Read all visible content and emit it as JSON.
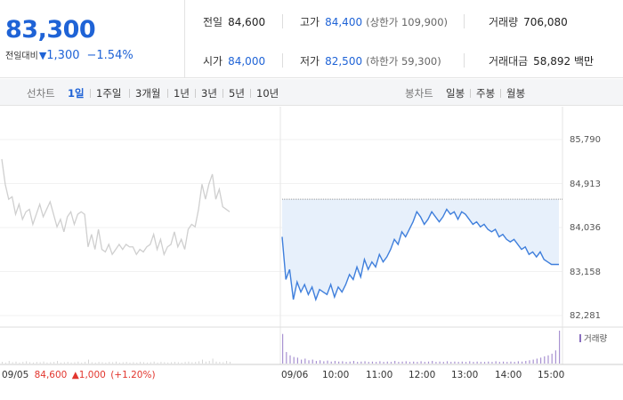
{
  "quote": {
    "current_price": "83,300",
    "change_label": "전일대비",
    "change_dir_icon": "down-triangle-icon",
    "change_amount": "1,300",
    "change_pct": "−1.54%",
    "down_color": "#1f63d6",
    "up_color": "#e2362e"
  },
  "info": {
    "prev_close": {
      "label": "전일",
      "value": "84,600"
    },
    "high": {
      "label": "고가",
      "value": "84,400",
      "limit_label": "(상한가 109,900)"
    },
    "volume": {
      "label": "거래량",
      "value": "706,080"
    },
    "open": {
      "label": "시가",
      "value": "84,000"
    },
    "low": {
      "label": "저가",
      "value": "82,500",
      "limit_label": "(하한가 59,300)"
    },
    "trade_value": {
      "label": "거래대금",
      "value": "58,892",
      "unit": "백만"
    }
  },
  "periods": {
    "line_label": "선차트",
    "line_items": [
      "1일",
      "1주일",
      "3개월",
      "1년",
      "3년",
      "5년",
      "10년"
    ],
    "active_index": 0,
    "candle_label": "봉차트",
    "candle_items": [
      "일봉",
      "주봉",
      "월봉"
    ]
  },
  "chart": {
    "y_ticks": [
      "85,790",
      "84,913",
      "84,036",
      "83,158",
      "82,281"
    ],
    "x_ticks": [
      "09/06",
      "10:00",
      "11:00",
      "12:00",
      "13:00",
      "14:00",
      "15:00"
    ],
    "prev_day": {
      "date": "09/05",
      "close": "84,600",
      "change": "▲1,000",
      "pct": "(+1.20%)"
    },
    "volume_legend": "거래량"
  },
  "chart_data": {
    "type": "line",
    "title": "",
    "xlabel": "",
    "ylabel": "",
    "ylim": [
      82281,
      85790
    ],
    "series": [
      {
        "values": [
          85400,
          84900,
          84600,
          84650,
          84300,
          84500,
          84200,
          84350,
          84400,
          84100,
          84300,
          84500,
          84250,
          84400,
          84550,
          84300,
          84050,
          84200,
          83950,
          84250,
          84350,
          84100,
          84300,
          84350,
          84300,
          83650,
          83900,
          83600,
          84000,
          83600,
          83550,
          83700,
          83500,
          83600,
          83700,
          83600,
          83700,
          83650,
          83650,
          83500,
          83600,
          83550,
          83650,
          83700,
          83900,
          83600,
          83800,
          83500,
          83650,
          83700,
          83950,
          83650,
          83800,
          83600,
          84000,
          84100,
          84050,
          84400,
          84900,
          84600,
          84900,
          85100,
          84600,
          84800,
          84450,
          84400,
          84350
        ]
      },
      {
        "values": [
          83850,
          83000,
          83200,
          82600,
          82950,
          82750,
          82900,
          82700,
          82850,
          82600,
          82800,
          82750,
          82700,
          82900,
          82650,
          82850,
          82750,
          82900,
          83100,
          83000,
          83250,
          83050,
          83400,
          83200,
          83350,
          83250,
          83500,
          83350,
          83450,
          83600,
          83800,
          83700,
          83950,
          83850,
          84000,
          84150,
          84350,
          84250,
          84100,
          84200,
          84350,
          84250,
          84150,
          84250,
          84400,
          84300,
          84350,
          84200,
          84350,
          84300,
          84200,
          84100,
          84150,
          84050,
          84100,
          84000,
          83950,
          84000,
          83850,
          83900,
          83800,
          83750,
          83800,
          83700,
          83600,
          83650,
          83500,
          83550,
          83450,
          83550,
          83400,
          83350,
          83300,
          83300,
          83300
        ]
      }
    ],
    "prev_close_line": 84600,
    "volume_relative": [
      0.05,
      0.03,
      0.08,
      0.04,
      0.06,
      0.03,
      0.05,
      0.07,
      0.04,
      0.03,
      0.05,
      0.04,
      0.06,
      0.03,
      0.04,
      0.05,
      0.08,
      0.03,
      0.04,
      0.05,
      0.03,
      0.04,
      0.06,
      0.03,
      0.05,
      0.12,
      0.04,
      0.03,
      0.05,
      0.04,
      0.03,
      0.05,
      0.04,
      0.06,
      0.03,
      0.04,
      0.05,
      0.03,
      0.04,
      0.03,
      0.05,
      0.04,
      0.03,
      0.04,
      0.06,
      0.03,
      0.05,
      0.04,
      0.03,
      0.04,
      0.05,
      0.04,
      0.03,
      0.05,
      0.06,
      0.04,
      0.05,
      0.07,
      0.12,
      0.06,
      0.08,
      0.15,
      0.06,
      0.05,
      0.04,
      0.08,
      0.05
    ],
    "volume_relative_today": [
      0.9,
      0.35,
      0.25,
      0.2,
      0.18,
      0.12,
      0.15,
      0.1,
      0.12,
      0.08,
      0.1,
      0.07,
      0.09,
      0.06,
      0.08,
      0.06,
      0.07,
      0.05,
      0.06,
      0.08,
      0.05,
      0.06,
      0.07,
      0.05,
      0.06,
      0.05,
      0.07,
      0.05,
      0.06,
      0.05,
      0.08,
      0.05,
      0.06,
      0.07,
      0.05,
      0.06,
      0.05,
      0.07,
      0.05,
      0.06,
      0.08,
      0.05,
      0.06,
      0.05,
      0.07,
      0.05,
      0.06,
      0.05,
      0.06,
      0.05,
      0.07,
      0.05,
      0.06,
      0.05,
      0.05,
      0.06,
      0.05,
      0.07,
      0.05,
      0.06,
      0.05,
      0.06,
      0.05,
      0.07,
      0.06,
      0.08,
      0.1,
      0.12,
      0.15,
      0.18,
      0.22,
      0.25,
      0.3,
      0.4,
      1.0
    ]
  }
}
